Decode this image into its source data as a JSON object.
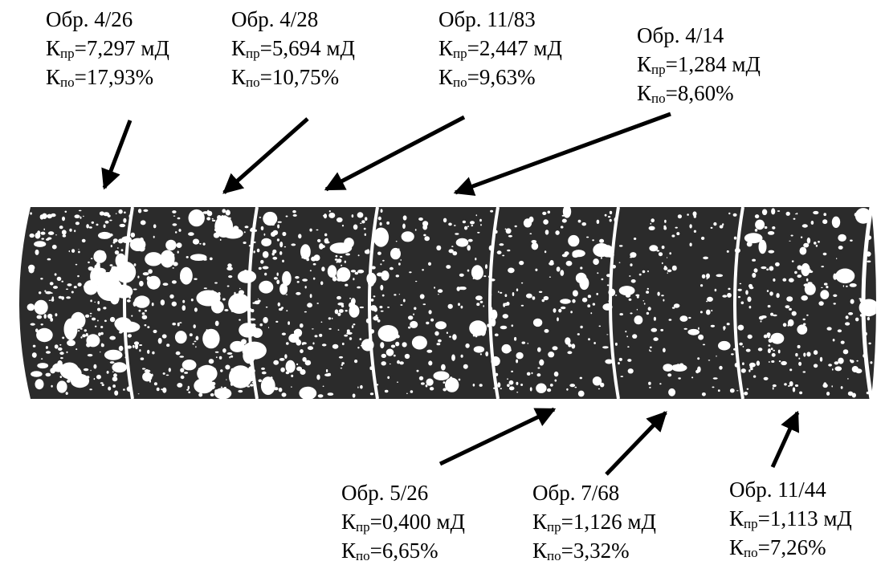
{
  "samples": [
    {
      "id": "Обр. 4/26",
      "k_sym": "К",
      "perm_sub": "пр",
      "perm_value": "=7,297 мД",
      "por_sub": "по",
      "por_value": "=17,93%"
    },
    {
      "id": "Обр. 4/28",
      "k_sym": "К",
      "perm_sub": "пр",
      "perm_value": "=5,694 мД",
      "por_sub": "по",
      "por_value": "=10,75%"
    },
    {
      "id": "Обр. 11/83",
      "k_sym": "К",
      "perm_sub": "пр",
      "perm_value": "=2,447 мД",
      "por_sub": "по",
      "por_value": "=9,63%"
    },
    {
      "id": "Обр. 4/14",
      "k_sym": "К",
      "perm_sub": "пр",
      "perm_value": "=1,284 мД",
      "por_sub": "по",
      "por_value": "=8,60%"
    },
    {
      "id": "Обр. 5/26",
      "k_sym": "К",
      "perm_sub": "пр",
      "perm_value": "=0,400 мД",
      "por_sub": "по",
      "por_value": "=6,65%"
    },
    {
      "id": "Обр. 7/68",
      "k_sym": "К",
      "perm_sub": "пр",
      "perm_value": "=1,126 мД",
      "por_sub": "по",
      "por_value": "=3,32%"
    },
    {
      "id": "Обр. 11/44",
      "k_sym": "К",
      "perm_sub": "пр",
      "perm_value": "=1,113 мД",
      "por_sub": "по",
      "por_value": "=7,26%"
    }
  ],
  "colors": {
    "rock": "#2b2b2b",
    "pore": "#ffffff",
    "ink": "#000000"
  }
}
